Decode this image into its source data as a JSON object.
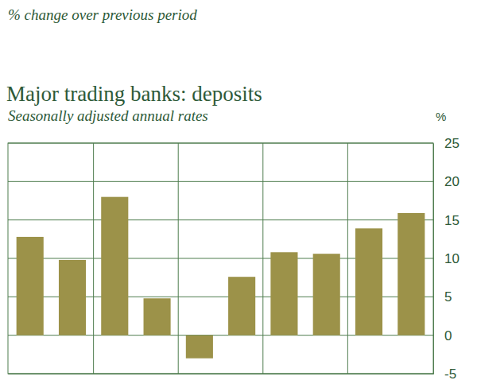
{
  "chart_data": {
    "type": "bar",
    "annotation": "% change over previous period",
    "title": "Major trading banks: deposits",
    "subtitle": "Seasonally adjusted annual rates",
    "y_label": "%",
    "categories": [
      null,
      null,
      null,
      null,
      null,
      null,
      null,
      null,
      null,
      null
    ],
    "values": [
      12.8,
      9.8,
      18.0,
      4.8,
      -3.0,
      7.6,
      10.8,
      10.6,
      13.9,
      15.9
    ],
    "color": "#9c9249",
    "ylim": [
      -5,
      25
    ],
    "yticks": [
      -5,
      0,
      5,
      10,
      15,
      20,
      25
    ],
    "grid": true
  }
}
